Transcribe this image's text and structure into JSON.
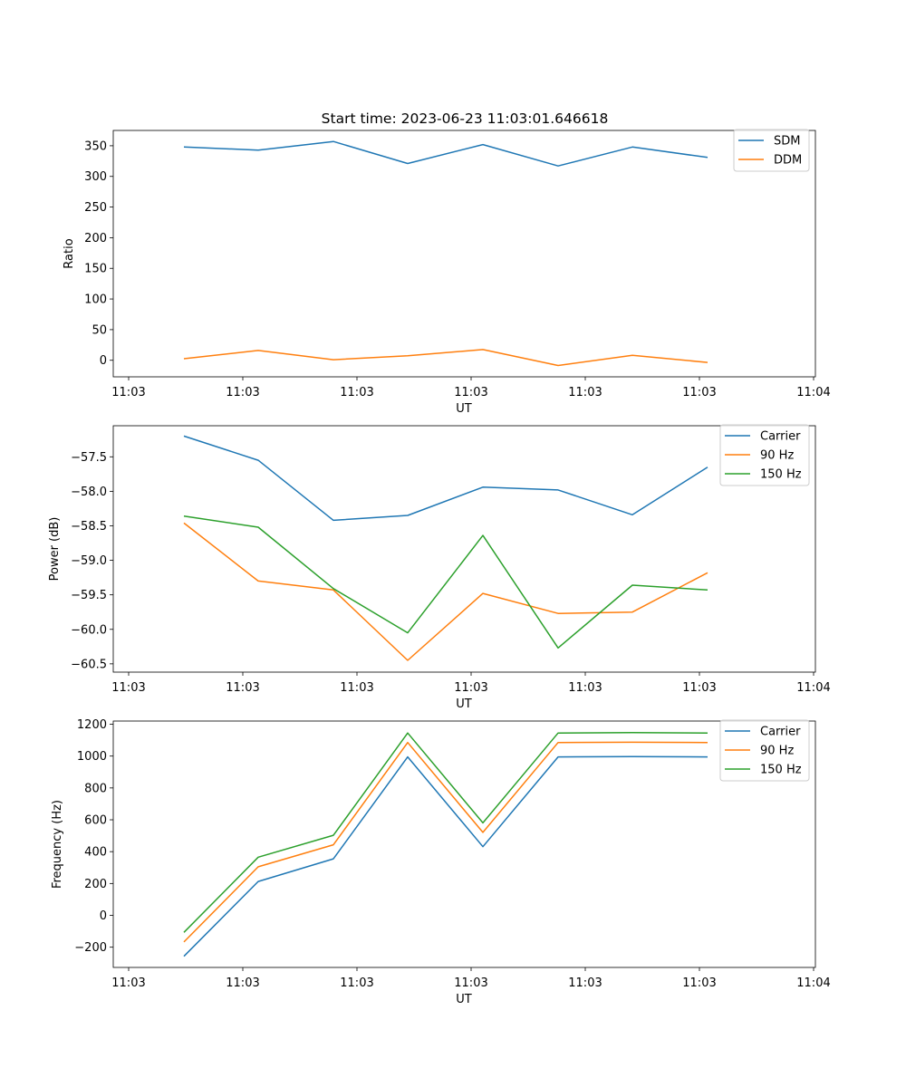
{
  "title": "Start time: 2023-06-23 11:03:01.646618",
  "chart_data": [
    {
      "type": "line",
      "title": "Start time: 2023-06-23 11:03:01.646618",
      "xlabel": "UT",
      "ylabel": "Ratio",
      "x_tick_labels": [
        "11:03",
        "11:03",
        "11:03",
        "11:03",
        "11:03",
        "11:03",
        "11:04"
      ],
      "y_ticks": [
        0,
        50,
        100,
        150,
        200,
        250,
        300,
        350
      ],
      "ylim": [
        -27,
        375
      ],
      "legend_placement": "upper-right",
      "series": [
        {
          "name": "SDM",
          "color": "#1f77b4",
          "values": [
            348,
            343,
            357,
            321,
            352,
            317,
            348,
            331
          ]
        },
        {
          "name": "DDM",
          "color": "#ff7f0e",
          "values": [
            2.5,
            16,
            1,
            7.5,
            17.5,
            -8.5,
            8,
            -3.5
          ]
        }
      ]
    },
    {
      "type": "line",
      "title": "",
      "xlabel": "UT",
      "ylabel": "Power (dB)",
      "x_tick_labels": [
        "11:03",
        "11:03",
        "11:03",
        "11:03",
        "11:03",
        "11:03",
        "11:04"
      ],
      "y_ticks": [
        -60.5,
        -60.0,
        -59.5,
        -59.0,
        -58.5,
        -58.0,
        -57.5
      ],
      "y_tick_labels": [
        "−60.5",
        "−60.0",
        "−59.5",
        "−59.0",
        "−58.5",
        "−58.0",
        "−57.5"
      ],
      "ylim": [
        -60.62,
        -57.05
      ],
      "legend_placement": "upper-right",
      "series": [
        {
          "name": "Carrier",
          "color": "#1f77b4",
          "values": [
            -57.2,
            -57.55,
            -58.42,
            -58.35,
            -57.94,
            -57.98,
            -58.34,
            -57.65
          ]
        },
        {
          "name": "90 Hz",
          "color": "#ff7f0e",
          "values": [
            -58.46,
            -59.3,
            -59.43,
            -60.45,
            -59.48,
            -59.77,
            -59.75,
            -59.18
          ]
        },
        {
          "name": "150 Hz",
          "color": "#2ca02c",
          "values": [
            -58.36,
            -58.52,
            -59.41,
            -60.05,
            -58.64,
            -60.27,
            -59.36,
            -59.43
          ]
        }
      ]
    },
    {
      "type": "line",
      "title": "",
      "xlabel": "UT",
      "ylabel": "Frequency (Hz)",
      "x_tick_labels": [
        "11:03",
        "11:03",
        "11:03",
        "11:03",
        "11:03",
        "11:03",
        "11:04"
      ],
      "y_ticks": [
        -200,
        0,
        200,
        400,
        600,
        800,
        1000,
        1200
      ],
      "y_tick_labels": [
        "−200",
        "0",
        "200",
        "400",
        "600",
        "800",
        "1000",
        "1200"
      ],
      "ylim": [
        -327,
        1220
      ],
      "legend_placement": "upper-right",
      "series": [
        {
          "name": "Carrier",
          "color": "#1f77b4",
          "values": [
            -257,
            213,
            355,
            995,
            431,
            995,
            997,
            995
          ]
        },
        {
          "name": "90 Hz",
          "color": "#ff7f0e",
          "values": [
            -167,
            305,
            443,
            1085,
            521,
            1085,
            1087,
            1085
          ]
        },
        {
          "name": "150 Hz",
          "color": "#2ca02c",
          "values": [
            -107,
            365,
            503,
            1145,
            581,
            1145,
            1147,
            1145
          ]
        }
      ]
    }
  ]
}
